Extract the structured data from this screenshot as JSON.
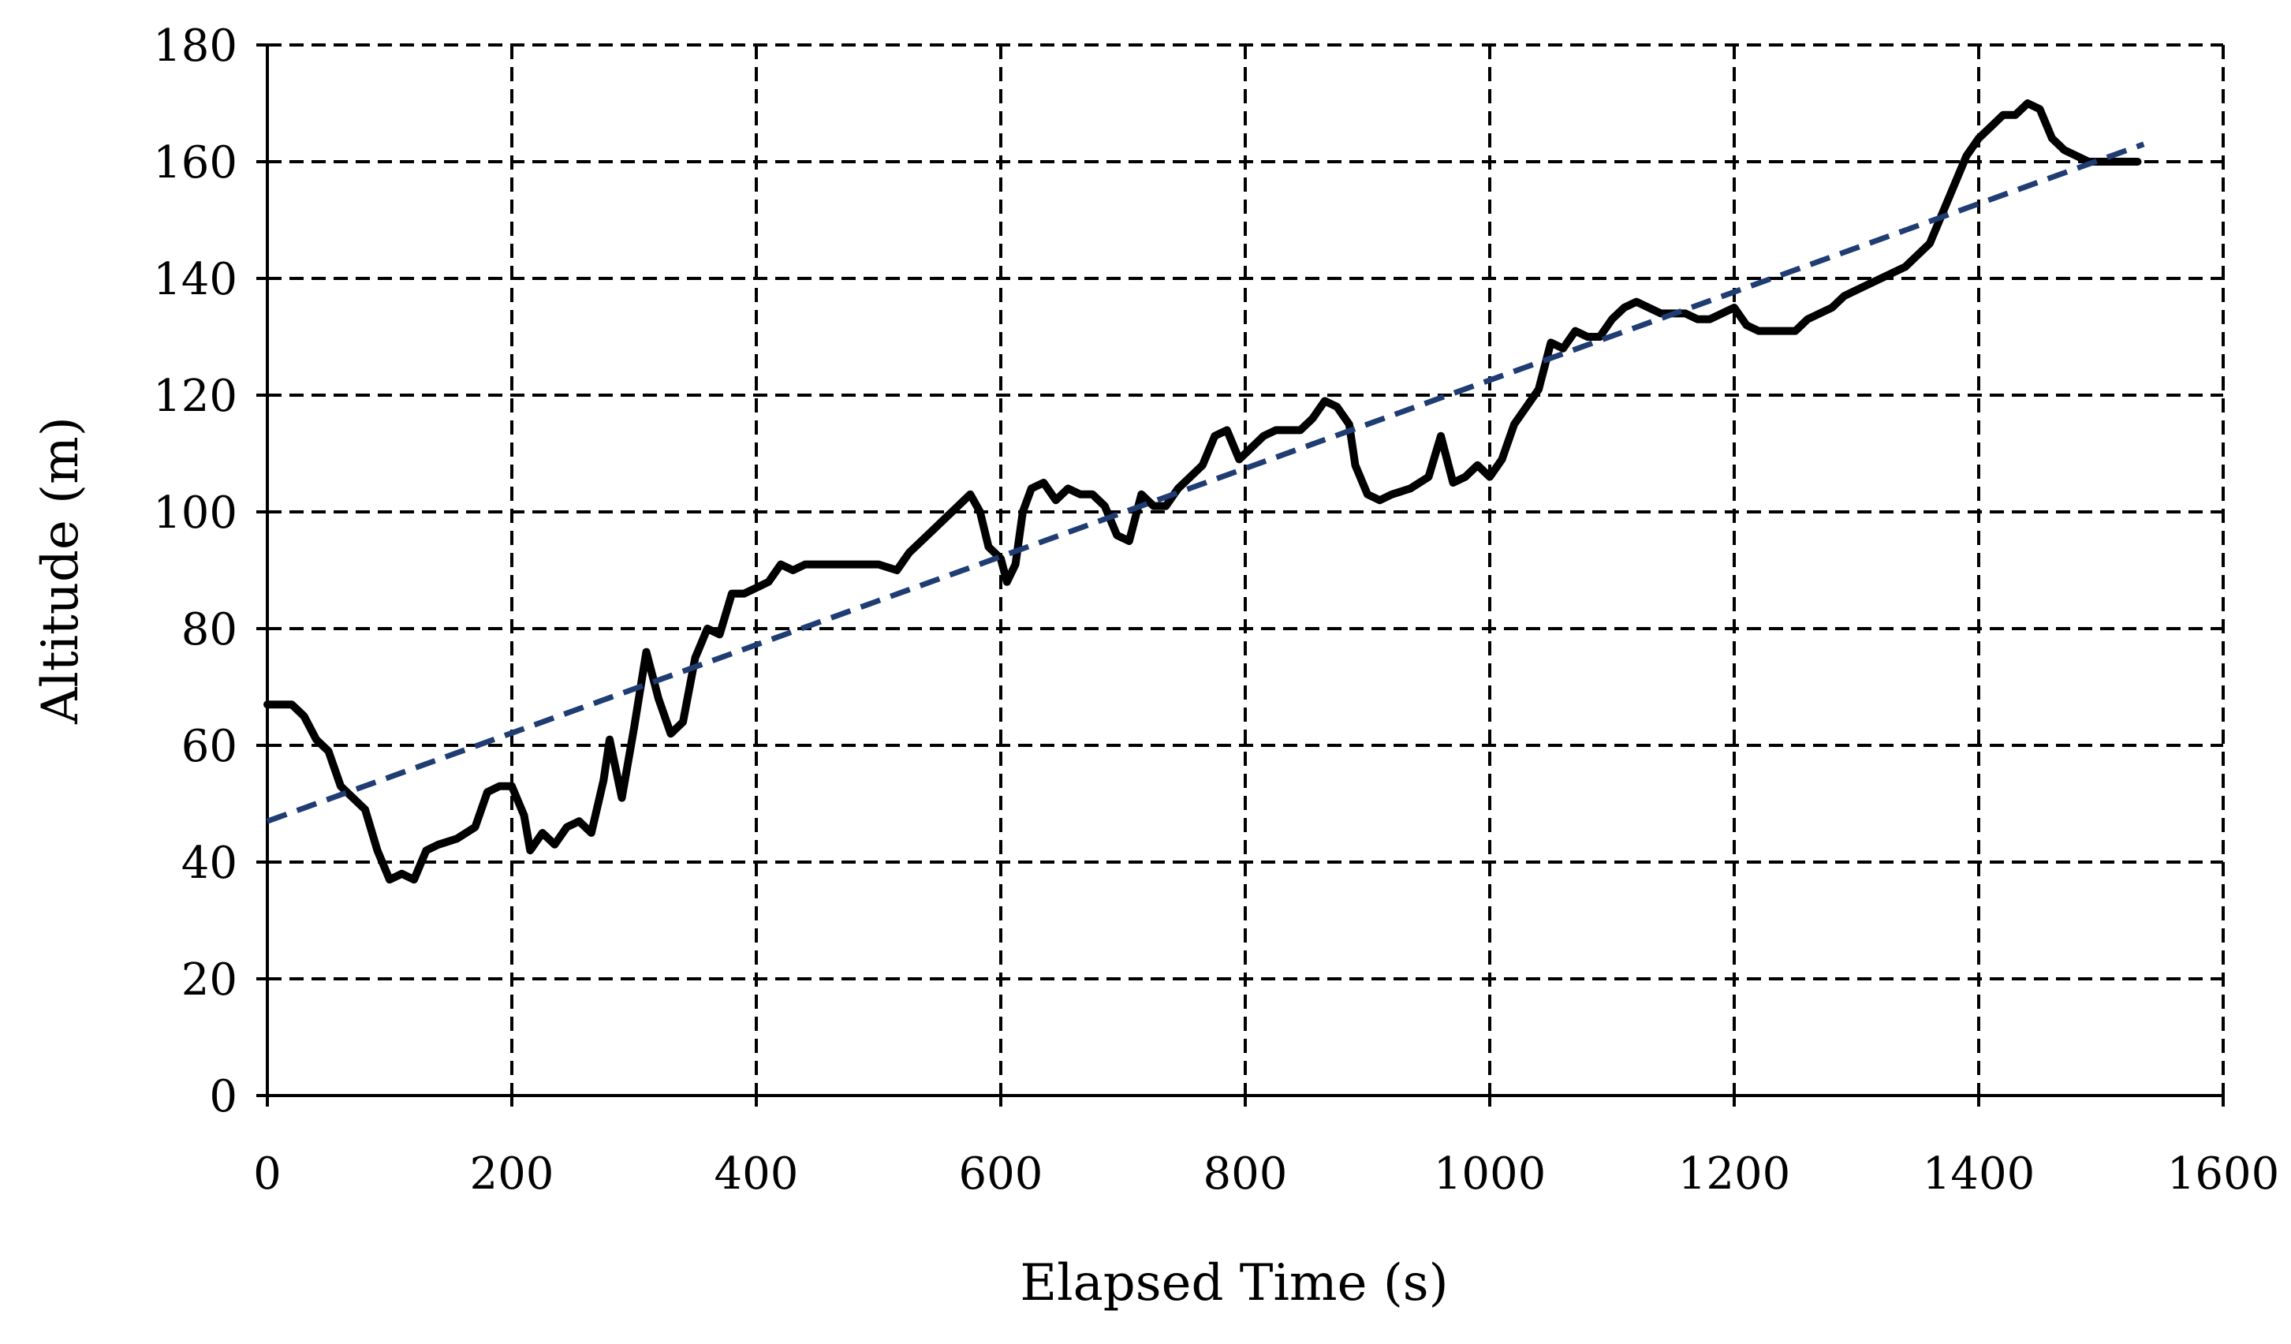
{
  "chart_data": {
    "type": "line",
    "title": "",
    "xlabel": "Elapsed Time (s)",
    "ylabel": "Altitude (m)",
    "xlim": [
      0,
      1600
    ],
    "ylim": [
      0,
      180
    ],
    "x_ticks": [
      0,
      200,
      400,
      600,
      800,
      1000,
      1200,
      1400,
      1600
    ],
    "y_ticks": [
      0,
      20,
      40,
      60,
      80,
      100,
      120,
      140,
      160,
      180
    ],
    "grid": true,
    "grid_style": "dashed",
    "legend": "none",
    "series": [
      {
        "style": "solid",
        "color": "#000000",
        "points": [
          [
            0,
            67
          ],
          [
            20,
            67
          ],
          [
            30,
            65
          ],
          [
            40,
            61
          ],
          [
            50,
            59
          ],
          [
            60,
            53
          ],
          [
            70,
            51
          ],
          [
            80,
            49
          ],
          [
            90,
            42
          ],
          [
            100,
            37
          ],
          [
            110,
            38
          ],
          [
            120,
            37
          ],
          [
            130,
            42
          ],
          [
            140,
            43
          ],
          [
            155,
            44
          ],
          [
            170,
            46
          ],
          [
            180,
            52
          ],
          [
            190,
            53
          ],
          [
            200,
            53
          ],
          [
            210,
            48
          ],
          [
            215,
            42
          ],
          [
            225,
            45
          ],
          [
            235,
            43
          ],
          [
            245,
            46
          ],
          [
            255,
            47
          ],
          [
            265,
            45
          ],
          [
            275,
            54
          ],
          [
            280,
            61
          ],
          [
            290,
            51
          ],
          [
            300,
            63
          ],
          [
            310,
            76
          ],
          [
            320,
            68
          ],
          [
            330,
            62
          ],
          [
            340,
            64
          ],
          [
            350,
            75
          ],
          [
            360,
            80
          ],
          [
            370,
            79
          ],
          [
            380,
            86
          ],
          [
            390,
            86
          ],
          [
            400,
            87
          ],
          [
            410,
            88
          ],
          [
            420,
            91
          ],
          [
            430,
            90
          ],
          [
            440,
            91
          ],
          [
            460,
            91
          ],
          [
            480,
            91
          ],
          [
            500,
            91
          ],
          [
            515,
            90
          ],
          [
            525,
            93
          ],
          [
            535,
            95
          ],
          [
            545,
            97
          ],
          [
            555,
            99
          ],
          [
            565,
            101
          ],
          [
            575,
            103
          ],
          [
            583,
            100
          ],
          [
            590,
            94
          ],
          [
            600,
            92
          ],
          [
            605,
            88
          ],
          [
            612,
            91
          ],
          [
            618,
            100
          ],
          [
            625,
            104
          ],
          [
            635,
            105
          ],
          [
            645,
            102
          ],
          [
            655,
            104
          ],
          [
            665,
            103
          ],
          [
            675,
            103
          ],
          [
            685,
            101
          ],
          [
            695,
            96
          ],
          [
            705,
            95
          ],
          [
            715,
            103
          ],
          [
            725,
            101
          ],
          [
            735,
            101
          ],
          [
            745,
            104
          ],
          [
            755,
            106
          ],
          [
            765,
            108
          ],
          [
            775,
            113
          ],
          [
            785,
            114
          ],
          [
            795,
            109
          ],
          [
            805,
            111
          ],
          [
            815,
            113
          ],
          [
            825,
            114
          ],
          [
            835,
            114
          ],
          [
            845,
            114
          ],
          [
            855,
            116
          ],
          [
            865,
            119
          ],
          [
            875,
            118
          ],
          [
            885,
            115
          ],
          [
            890,
            108
          ],
          [
            900,
            103
          ],
          [
            910,
            102
          ],
          [
            920,
            103
          ],
          [
            935,
            104
          ],
          [
            950,
            106
          ],
          [
            960,
            113
          ],
          [
            970,
            105
          ],
          [
            980,
            106
          ],
          [
            990,
            108
          ],
          [
            1000,
            106
          ],
          [
            1010,
            109
          ],
          [
            1020,
            115
          ],
          [
            1030,
            118
          ],
          [
            1040,
            121
          ],
          [
            1050,
            129
          ],
          [
            1060,
            128
          ],
          [
            1070,
            131
          ],
          [
            1080,
            130
          ],
          [
            1090,
            130
          ],
          [
            1100,
            133
          ],
          [
            1110,
            135
          ],
          [
            1120,
            136
          ],
          [
            1130,
            135
          ],
          [
            1140,
            134
          ],
          [
            1150,
            134
          ],
          [
            1160,
            134
          ],
          [
            1170,
            133
          ],
          [
            1180,
            133
          ],
          [
            1190,
            134
          ],
          [
            1200,
            135
          ],
          [
            1210,
            132
          ],
          [
            1220,
            131
          ],
          [
            1230,
            131
          ],
          [
            1240,
            131
          ],
          [
            1250,
            131
          ],
          [
            1260,
            133
          ],
          [
            1270,
            134
          ],
          [
            1280,
            135
          ],
          [
            1290,
            137
          ],
          [
            1300,
            138
          ],
          [
            1310,
            139
          ],
          [
            1320,
            140
          ],
          [
            1330,
            141
          ],
          [
            1340,
            142
          ],
          [
            1350,
            144
          ],
          [
            1360,
            146
          ],
          [
            1370,
            151
          ],
          [
            1380,
            156
          ],
          [
            1390,
            161
          ],
          [
            1400,
            164
          ],
          [
            1410,
            166
          ],
          [
            1420,
            168
          ],
          [
            1430,
            168
          ],
          [
            1440,
            170
          ],
          [
            1450,
            169
          ],
          [
            1460,
            164
          ],
          [
            1470,
            162
          ],
          [
            1480,
            161
          ],
          [
            1490,
            160
          ],
          [
            1500,
            160
          ],
          [
            1510,
            160
          ],
          [
            1520,
            160
          ],
          [
            1530,
            160
          ]
        ]
      },
      {
        "style": "dashed",
        "color": "#1f3c73",
        "points": [
          [
            0,
            47
          ],
          [
            1535,
            163
          ]
        ]
      }
    ]
  }
}
